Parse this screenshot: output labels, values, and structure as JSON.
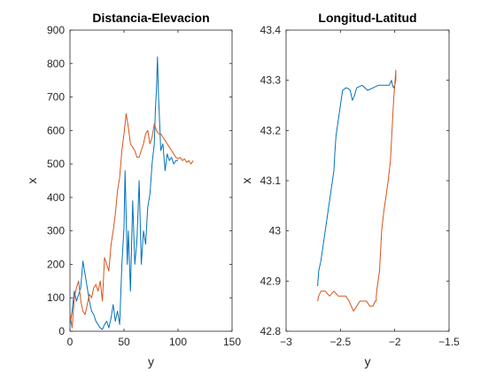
{
  "chart_data": [
    {
      "type": "line",
      "title": "Distancia-Elevacion",
      "xlabel": "y",
      "ylabel": "x",
      "xlim": [
        0,
        150
      ],
      "ylim": [
        0,
        900
      ],
      "xticks": [
        0,
        50,
        100,
        150
      ],
      "yticks": [
        0,
        100,
        200,
        300,
        400,
        500,
        600,
        700,
        800,
        900
      ],
      "colors": [
        "#0072BD",
        "#D95319"
      ],
      "series": [
        {
          "x": [
            0,
            2,
            4,
            6,
            8,
            10,
            12,
            14,
            16,
            18,
            20,
            22,
            24,
            26,
            28,
            30,
            32,
            34,
            36,
            38,
            40,
            42,
            44,
            46,
            48,
            50,
            51,
            52,
            53,
            54,
            56,
            58,
            60,
            62,
            64,
            66,
            68,
            70,
            72,
            74,
            76,
            78,
            79,
            80,
            81,
            82,
            83,
            84,
            86,
            88,
            90,
            92,
            94,
            96,
            98,
            100
          ],
          "y": [
            20,
            60,
            120,
            90,
            110,
            130,
            210,
            170,
            130,
            90,
            60,
            50,
            30,
            20,
            10,
            5,
            20,
            30,
            10,
            40,
            80,
            30,
            60,
            20,
            200,
            310,
            480,
            350,
            200,
            300,
            120,
            390,
            200,
            270,
            450,
            200,
            300,
            260,
            370,
            410,
            500,
            560,
            660,
            720,
            820,
            700,
            620,
            540,
            560,
            480,
            530,
            510,
            520,
            500,
            510,
            510
          ]
        },
        {
          "x": [
            0,
            2,
            4,
            6,
            8,
            10,
            12,
            14,
            16,
            18,
            20,
            22,
            24,
            26,
            28,
            30,
            32,
            34,
            36,
            38,
            40,
            42,
            44,
            46,
            48,
            50,
            52,
            54,
            56,
            58,
            60,
            62,
            64,
            66,
            68,
            70,
            72,
            74,
            76,
            78,
            80,
            82,
            84,
            86,
            88,
            90,
            92,
            94,
            96,
            98,
            100,
            102,
            104,
            106,
            108,
            110,
            112,
            114
          ],
          "y": [
            50,
            10,
            100,
            130,
            150,
            90,
            60,
            50,
            80,
            110,
            100,
            130,
            140,
            120,
            150,
            90,
            220,
            200,
            180,
            260,
            300,
            350,
            420,
            460,
            540,
            590,
            650,
            610,
            560,
            550,
            540,
            520,
            520,
            540,
            560,
            590,
            600,
            560,
            580,
            620,
            600,
            590,
            590,
            580,
            570,
            560,
            550,
            540,
            530,
            520,
            515,
            520,
            510,
            515,
            505,
            510,
            500,
            510
          ]
        }
      ]
    },
    {
      "type": "line",
      "title": "Longitud-Latitud",
      "xlabel": "y",
      "ylabel": "x",
      "xlim": [
        -3,
        -1.5
      ],
      "ylim": [
        42.8,
        43.4
      ],
      "xticks": [
        -3,
        -2.5,
        -2,
        -1.5
      ],
      "yticks": [
        42.8,
        42.9,
        43,
        43.1,
        43.2,
        43.3,
        43.4
      ],
      "colors": [
        "#0072BD",
        "#D95319"
      ],
      "series": [
        {
          "x": [
            -2.71,
            -2.7,
            -2.68,
            -2.66,
            -2.64,
            -2.62,
            -2.6,
            -2.58,
            -2.56,
            -2.55,
            -2.54,
            -2.52,
            -2.5,
            -2.48,
            -2.45,
            -2.43,
            -2.41,
            -2.39,
            -2.37,
            -2.35,
            -2.3,
            -2.25,
            -2.2,
            -2.15,
            -2.1,
            -2.05,
            -2.03,
            -2.02,
            -2.01,
            -2.0
          ],
          "y": [
            42.89,
            42.92,
            42.94,
            42.97,
            43.0,
            43.03,
            43.06,
            43.09,
            43.12,
            43.16,
            43.19,
            43.22,
            43.25,
            43.28,
            43.285,
            43.284,
            43.28,
            43.26,
            43.27,
            43.285,
            43.29,
            43.28,
            43.285,
            43.29,
            43.29,
            43.29,
            43.3,
            43.29,
            43.285,
            43.29
          ]
        },
        {
          "x": [
            -2.0,
            -1.99,
            -1.99,
            -2.0,
            -2.01,
            -2.02,
            -2.03,
            -2.04,
            -2.06,
            -2.08,
            -2.1,
            -2.12,
            -2.13,
            -2.14,
            -2.16,
            -2.17,
            -2.17,
            -2.18,
            -2.2,
            -2.23,
            -2.26,
            -2.29,
            -2.32,
            -2.35,
            -2.38,
            -2.4,
            -2.42,
            -2.45,
            -2.48,
            -2.52,
            -2.56,
            -2.6,
            -2.64,
            -2.68,
            -2.7,
            -2.71
          ],
          "y": [
            43.29,
            43.3,
            43.32,
            43.29,
            43.26,
            43.22,
            43.18,
            43.14,
            43.1,
            43.07,
            43.04,
            43.0,
            42.96,
            42.92,
            42.89,
            42.87,
            42.86,
            42.86,
            42.85,
            42.85,
            42.86,
            42.86,
            42.86,
            42.85,
            42.84,
            42.85,
            42.86,
            42.87,
            42.87,
            42.87,
            42.88,
            42.87,
            42.88,
            42.88,
            42.87,
            42.86
          ]
        }
      ]
    }
  ]
}
